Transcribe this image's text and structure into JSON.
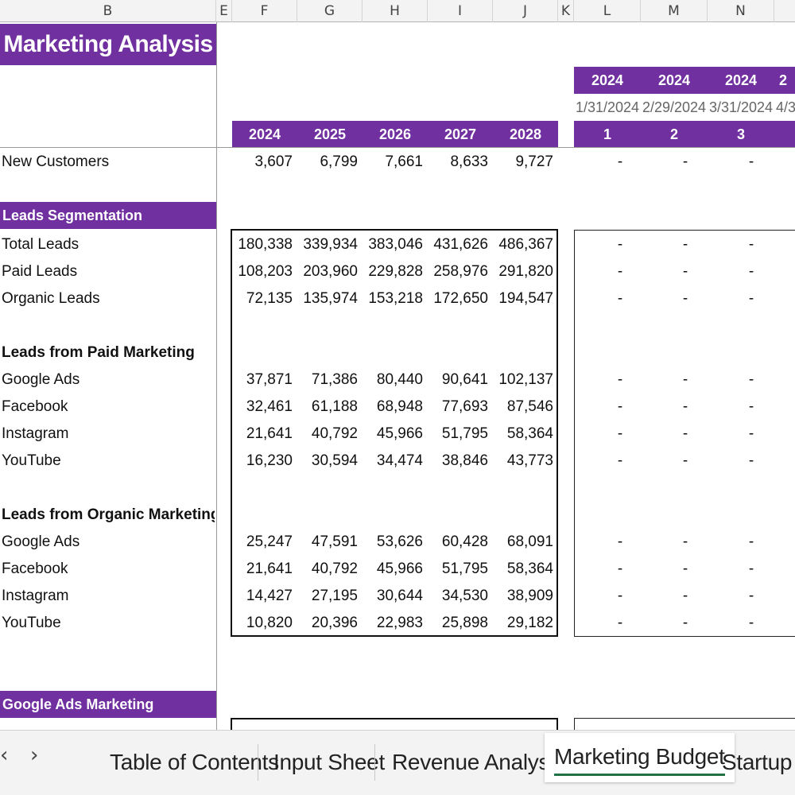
{
  "columns": [
    "B",
    "E",
    "F",
    "G",
    "H",
    "I",
    "J",
    "K",
    "L",
    "M",
    "N"
  ],
  "title": "Marketing Analysis",
  "annual_years": [
    "2024",
    "2025",
    "2026",
    "2027",
    "2028"
  ],
  "monthly": {
    "years": [
      "2024",
      "2024",
      "2024",
      "2"
    ],
    "dates": [
      "1/31/2024",
      "2/29/2024",
      "3/31/2024",
      "4/3"
    ],
    "indexes": [
      "1",
      "2",
      "3"
    ]
  },
  "dash": "-",
  "rows": {
    "new_customers": {
      "label": "New Customers",
      "values": [
        "3,607",
        "6,799",
        "7,661",
        "8,633",
        "9,727"
      ]
    },
    "leads_segmentation": "Leads Segmentation",
    "total_leads": {
      "label": "Total Leads",
      "values": [
        "180,338",
        "339,934",
        "383,046",
        "431,626",
        "486,367"
      ]
    },
    "paid_leads": {
      "label": "Paid Leads",
      "values": [
        "108,203",
        "203,960",
        "229,828",
        "258,976",
        "291,820"
      ]
    },
    "organic_leads": {
      "label": "Organic Leads",
      "values": [
        "72,135",
        "135,974",
        "153,218",
        "172,650",
        "194,547"
      ]
    },
    "paid_header": "Leads from Paid Marketing",
    "paid_google": {
      "label": "Google Ads",
      "values": [
        "37,871",
        "71,386",
        "80,440",
        "90,641",
        "102,137"
      ]
    },
    "paid_facebook": {
      "label": "Facebook",
      "values": [
        "32,461",
        "61,188",
        "68,948",
        "77,693",
        "87,546"
      ]
    },
    "paid_instagram": {
      "label": "Instagram",
      "values": [
        "21,641",
        "40,792",
        "45,966",
        "51,795",
        "58,364"
      ]
    },
    "paid_youtube": {
      "label": "YouTube",
      "values": [
        "16,230",
        "30,594",
        "34,474",
        "38,846",
        "43,773"
      ]
    },
    "organic_header": "Leads from Organic Marketing",
    "org_google": {
      "label": "Google Ads",
      "values": [
        "25,247",
        "47,591",
        "53,626",
        "60,428",
        "68,091"
      ]
    },
    "org_facebook": {
      "label": "Facebook",
      "values": [
        "21,641",
        "40,792",
        "45,966",
        "51,795",
        "58,364"
      ]
    },
    "org_instagram": {
      "label": "Instagram",
      "values": [
        "14,427",
        "27,195",
        "30,644",
        "34,530",
        "38,909"
      ]
    },
    "org_youtube": {
      "label": "YouTube",
      "values": [
        "10,820",
        "20,396",
        "22,983",
        "25,898",
        "29,182"
      ]
    },
    "google_ads_marketing": "Google Ads Marketing"
  },
  "tabs": {
    "prev": "‹",
    "next": "›",
    "items": [
      "Table of Contents",
      "Input Sheet",
      "Revenue Analysis",
      "Marketing Budget",
      "Startup Su"
    ],
    "active_index": 3
  },
  "colors": {
    "accent": "#7030a0",
    "active_tab_underline": "#217346"
  }
}
